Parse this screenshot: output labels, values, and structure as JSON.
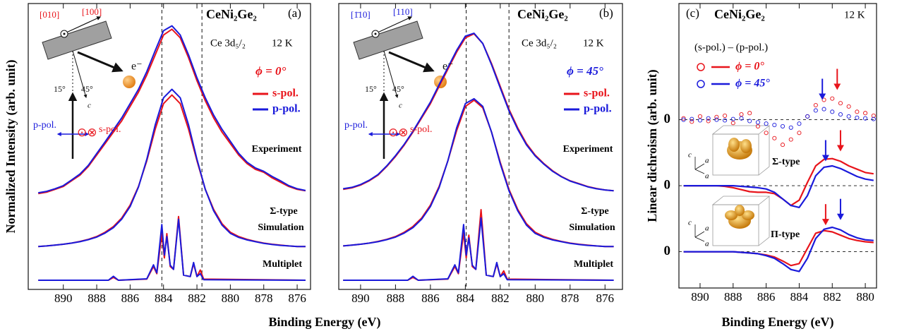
{
  "chart_data": [
    {
      "type": "line",
      "ylabel": "Normalized Intensity (arb. unit)",
      "xlabel": "Binding Energy (eV)",
      "xlim": [
        892.1,
        875.2
      ],
      "ylim": [
        0,
        100
      ],
      "xticks": [
        890,
        888,
        886,
        884,
        882,
        880,
        878,
        876
      ],
      "vlines": [
        884.1,
        881.7
      ],
      "annotations": {
        "panel": "(a)",
        "compound": "CeNi₂Ge₂",
        "core_level": "Ce 3d₅/₂",
        "temperature": "12 K",
        "angle": "ϕ = 0°",
        "labels": [
          "Experiment",
          "Σ-type",
          "Simulation",
          "Multiplet"
        ],
        "diagram": [
          "[010]",
          "[100]",
          "15°",
          "45°",
          "c",
          "e⁻",
          "p-pol.",
          "⊙⊗",
          "s-pol."
        ]
      },
      "x": [
        891.5,
        891,
        890.5,
        890,
        889.5,
        889,
        888.5,
        888,
        887.5,
        887,
        886.5,
        886,
        885.5,
        885,
        884.5,
        884,
        883.5,
        883,
        882.5,
        882,
        881.5,
        881,
        880.5,
        880,
        879.5,
        879,
        878.5,
        878,
        877.5,
        877,
        876.5,
        876,
        875.5
      ],
      "series": [
        {
          "name": "s-pol.",
          "color": "#e8141b",
          "experiment": [
            33.5,
            34,
            35,
            36,
            38,
            40,
            43,
            47,
            51,
            55,
            59,
            64,
            69,
            75,
            82,
            89,
            91,
            88,
            81,
            73,
            66,
            60,
            55,
            51,
            47,
            44,
            42,
            41,
            39,
            37.5,
            36,
            35,
            34.5
          ],
          "simulation": [
            15,
            15.2,
            15.5,
            15.8,
            16.2,
            16.8,
            17.5,
            18.5,
            20,
            22,
            25,
            29.5,
            36,
            45,
            56,
            65,
            68,
            65,
            56,
            45,
            35,
            28,
            23,
            20,
            18.5,
            17.5,
            16.8,
            16.2,
            15.8,
            15.5,
            15.2,
            15,
            15
          ],
          "multiplet_x": [
            891.5,
            887.3,
            887.0,
            886.7,
            885.0,
            884.6,
            884.4,
            884.1,
            883.95,
            883.8,
            883.6,
            883.4,
            883.1,
            882.8,
            882.4,
            882.2,
            882.0,
            881.8,
            881.6,
            875.5
          ],
          "multiplet": [
            3.2,
            3.2,
            4.2,
            3.2,
            3.6,
            8.0,
            5.5,
            19.5,
            11,
            19.5,
            8,
            7,
            25.5,
            5,
            4.5,
            9,
            4.5,
            6.8,
            3.6,
            3.2
          ]
        },
        {
          "name": "p-pol.",
          "color": "#1a1adb",
          "experiment": [
            33.8,
            34.3,
            35.2,
            36.3,
            38.3,
            40.4,
            43.4,
            47.5,
            51.6,
            55.8,
            60,
            65,
            70,
            76.2,
            83.5,
            90.5,
            92.2,
            89,
            82,
            74,
            67,
            61,
            56,
            51.8,
            47.6,
            44.5,
            42.5,
            41.3,
            39.5,
            38,
            36.3,
            35.2,
            34.6
          ],
          "simulation": [
            15,
            15.2,
            15.5,
            15.8,
            16.2,
            16.7,
            17.4,
            18.3,
            19.7,
            21.6,
            24.6,
            29,
            35.8,
            45.5,
            57.5,
            67,
            70,
            67,
            57.5,
            45.5,
            35,
            27.5,
            22.5,
            19.6,
            18.2,
            17.3,
            16.7,
            16.1,
            15.7,
            15.4,
            15.2,
            15,
            15
          ],
          "multiplet_x": [
            891.5,
            887.3,
            887.0,
            886.7,
            885.0,
            884.6,
            884.4,
            884.1,
            883.95,
            883.8,
            883.6,
            883.4,
            883.1,
            882.8,
            882.4,
            882.2,
            882.0,
            881.8,
            881.6,
            875.5
          ],
          "multiplet": [
            3.2,
            3.2,
            4.6,
            3.2,
            3.7,
            8.6,
            5.8,
            22.7,
            12,
            18.5,
            8.5,
            7,
            24.5,
            5,
            4.5,
            9.4,
            4.5,
            5.5,
            3.4,
            3.2
          ]
        }
      ]
    },
    {
      "type": "line",
      "xlim": [
        891.25,
        875.0
      ],
      "ylim": [
        0,
        100
      ],
      "xticks": [
        890,
        888,
        886,
        884,
        882,
        880,
        878,
        876
      ],
      "vlines": [
        883.95,
        881.5
      ],
      "annotations": {
        "panel": "(b)",
        "compound": "CeNi₂Ge₂",
        "core_level": "Ce 3d₅/₂",
        "temperature": "12 K",
        "angle": "ϕ = 45°",
        "labels": [
          "Experiment",
          "Σ-type",
          "Simulation",
          "Multiplet"
        ],
        "diagram": [
          "[1̄10]",
          "[110]",
          "15°",
          "45°",
          "c",
          "e⁻",
          "p-pol.",
          "⊙⊗",
          "s-pol."
        ]
      },
      "x": [
        891,
        890.5,
        890,
        889.5,
        889,
        888.5,
        888,
        887.5,
        887,
        886.5,
        886,
        885.5,
        885,
        884.5,
        884,
        883.5,
        883,
        882.5,
        882,
        881.5,
        881,
        880.5,
        880,
        879.5,
        879,
        878.5,
        878,
        877.5,
        877,
        876.5,
        876,
        875.5
      ],
      "series": [
        {
          "name": "s-pol.",
          "color": "#e8141b",
          "experiment": [
            35,
            35.5,
            36.5,
            38,
            40,
            43,
            46.5,
            50.5,
            55,
            60,
            65,
            71,
            77,
            83,
            88,
            89.4,
            86,
            79,
            71,
            63,
            56.5,
            51,
            47,
            44,
            41.5,
            39.5,
            38,
            37,
            36,
            35.3,
            34.8,
            34.5
          ],
          "simulation": [
            15.2,
            15.5,
            15.8,
            16.2,
            16.8,
            17.5,
            18.5,
            20,
            22,
            25,
            29.5,
            36,
            45,
            55.5,
            64,
            66.2,
            63.5,
            55,
            44.5,
            35,
            28,
            23,
            20,
            18.5,
            17.5,
            16.8,
            16.2,
            15.8,
            15.5,
            15.2,
            15,
            15
          ],
          "multiplet_x": [
            891,
            887.3,
            887.0,
            886.7,
            885.0,
            884.6,
            884.4,
            884.1,
            883.95,
            883.8,
            883.6,
            883.4,
            883.1,
            882.8,
            882.4,
            882.2,
            882.0,
            881.8,
            881.6,
            875.5
          ],
          "multiplet": [
            3.2,
            3.2,
            4.2,
            3.2,
            3.6,
            8.0,
            5.5,
            19.8,
            11,
            19,
            8,
            7,
            27.9,
            5,
            4.5,
            9,
            4.5,
            6.5,
            3.6,
            3.2
          ]
        },
        {
          "name": "p-pol.",
          "color": "#1a1adb",
          "experiment": [
            35.2,
            35.7,
            36.7,
            38.2,
            40.2,
            43.2,
            46.8,
            50.8,
            55.3,
            60.4,
            65.5,
            71.6,
            77.6,
            83.6,
            88.6,
            89.6,
            86,
            78.6,
            70.5,
            62.5,
            56,
            50.6,
            46.7,
            43.8,
            41.3,
            39.4,
            37.9,
            36.9,
            35.9,
            35.2,
            34.8,
            34.5
          ],
          "simulation": [
            15.2,
            15.5,
            15.8,
            16.2,
            16.7,
            17.4,
            18.3,
            19.7,
            21.6,
            24.6,
            29,
            35.6,
            45,
            56.5,
            65,
            66.7,
            64,
            55,
            44,
            34.5,
            27.5,
            22.5,
            19.6,
            18.2,
            17.3,
            16.7,
            16.1,
            15.7,
            15.4,
            15.2,
            15,
            15
          ],
          "multiplet_x": [
            891,
            887.3,
            887.0,
            886.7,
            885.0,
            884.6,
            884.4,
            884.1,
            883.95,
            883.8,
            883.6,
            883.4,
            883.1,
            882.8,
            882.4,
            882.2,
            882.0,
            881.8,
            881.6,
            875.5
          ],
          "multiplet": [
            3.2,
            3.2,
            4.6,
            3.2,
            3.7,
            8.6,
            5.8,
            22.7,
            12,
            18,
            8.5,
            7,
            25,
            5,
            4.5,
            9.4,
            4.5,
            5.5,
            3.4,
            3.2
          ]
        }
      ]
    },
    {
      "type": "dichroism",
      "ylabel": "Linear dichroism (arb. unit)",
      "xlabel": "Binding Energy (eV)",
      "xlim": [
        891.28,
        879.32
      ],
      "ylim": [
        -2.55,
        1.76
      ],
      "xticks": [
        890,
        888,
        886,
        884,
        882,
        880
      ],
      "yticks": [
        0,
        {
          "value": -1,
          "label": "0"
        },
        {
          "value": -2,
          "label": "0"
        }
      ],
      "annotations": {
        "panel": "(c)",
        "compound": "CeNi₂Ge₂",
        "temperature": "12 K",
        "difference": "(s-pol.) – (p-pol.)",
        "labels": [
          "Σ-type",
          "Π-type"
        ],
        "axes": [
          "c",
          "a",
          "a",
          "c",
          "a",
          "a"
        ]
      },
      "arrows": [
        {
          "x": 882.6,
          "y": 0.3,
          "color": "#1a1adb"
        },
        {
          "x": 881.7,
          "y": 0.45,
          "color": "#e8141b"
        },
        {
          "x": 882.4,
          "y": -0.63,
          "color": "#1a1adb"
        },
        {
          "x": 881.5,
          "y": -0.48,
          "color": "#e8141b"
        },
        {
          "x": 882.4,
          "y": -1.6,
          "color": "#e8141b"
        },
        {
          "x": 881.5,
          "y": -1.52,
          "color": "#1a1adb"
        }
      ],
      "x": [
        891,
        890.5,
        890,
        889.5,
        889,
        888.5,
        888,
        887.5,
        887,
        886.5,
        886,
        885.5,
        885,
        884.5,
        884,
        883.5,
        883,
        882.5,
        882,
        881.5,
        881,
        880.5,
        880,
        879.5
      ],
      "series": [
        {
          "name": "ϕ = 0°",
          "color": "#e8141b",
          "experiment": [
            0.02,
            -0.03,
            0.05,
            -0.02,
            0.04,
            0.06,
            -0.05,
            0.08,
            0.1,
            -0.1,
            -0.2,
            -0.28,
            -0.38,
            -0.3,
            -0.2,
            0.05,
            0.22,
            0.3,
            0.32,
            0.25,
            0.2,
            0.12,
            0.1,
            0.06
          ],
          "sigma": [
            -1,
            -1,
            -1,
            -1,
            -1,
            -1.01,
            -1.03,
            -1.06,
            -1.09,
            -1.1,
            -1.1,
            -1.12,
            -1.2,
            -1.3,
            -1.22,
            -0.95,
            -0.7,
            -0.6,
            -0.59,
            -0.63,
            -0.7,
            -0.75,
            -0.8,
            -0.82
          ],
          "pi": [
            -2,
            -2,
            -2,
            -2,
            -2,
            -2,
            -2,
            -2.01,
            -2.02,
            -2.03,
            -2.05,
            -2.08,
            -2.14,
            -2.21,
            -2.18,
            -1.95,
            -1.72,
            -1.68,
            -1.7,
            -1.75,
            -1.8,
            -1.83,
            -1.85,
            -1.86
          ]
        },
        {
          "name": "ϕ = 45°",
          "color": "#1a1adb",
          "experiment": [
            0,
            0.01,
            -0.01,
            0.02,
            0,
            -0.01,
            0.01,
            0.02,
            -0.02,
            -0.04,
            -0.06,
            -0.08,
            -0.1,
            -0.12,
            -0.06,
            0.05,
            0.14,
            0.16,
            0.12,
            0.08,
            0.05,
            0.03,
            0.02,
            0.01
          ],
          "sigma": [
            -1,
            -1,
            -1,
            -1,
            -1,
            -1,
            -1,
            -1.01,
            -1.02,
            -1.03,
            -1.05,
            -1.1,
            -1.2,
            -1.3,
            -1.33,
            -1.15,
            -0.85,
            -0.72,
            -0.7,
            -0.74,
            -0.8,
            -0.86,
            -0.9,
            -0.92
          ],
          "pi": [
            -2,
            -2,
            -2,
            -2,
            -2,
            -2,
            -2,
            -2.01,
            -2.02,
            -2.03,
            -2.06,
            -2.1,
            -2.18,
            -2.27,
            -2.3,
            -2.1,
            -1.8,
            -1.66,
            -1.63,
            -1.67,
            -1.74,
            -1.79,
            -1.82,
            -1.83
          ]
        }
      ]
    }
  ]
}
